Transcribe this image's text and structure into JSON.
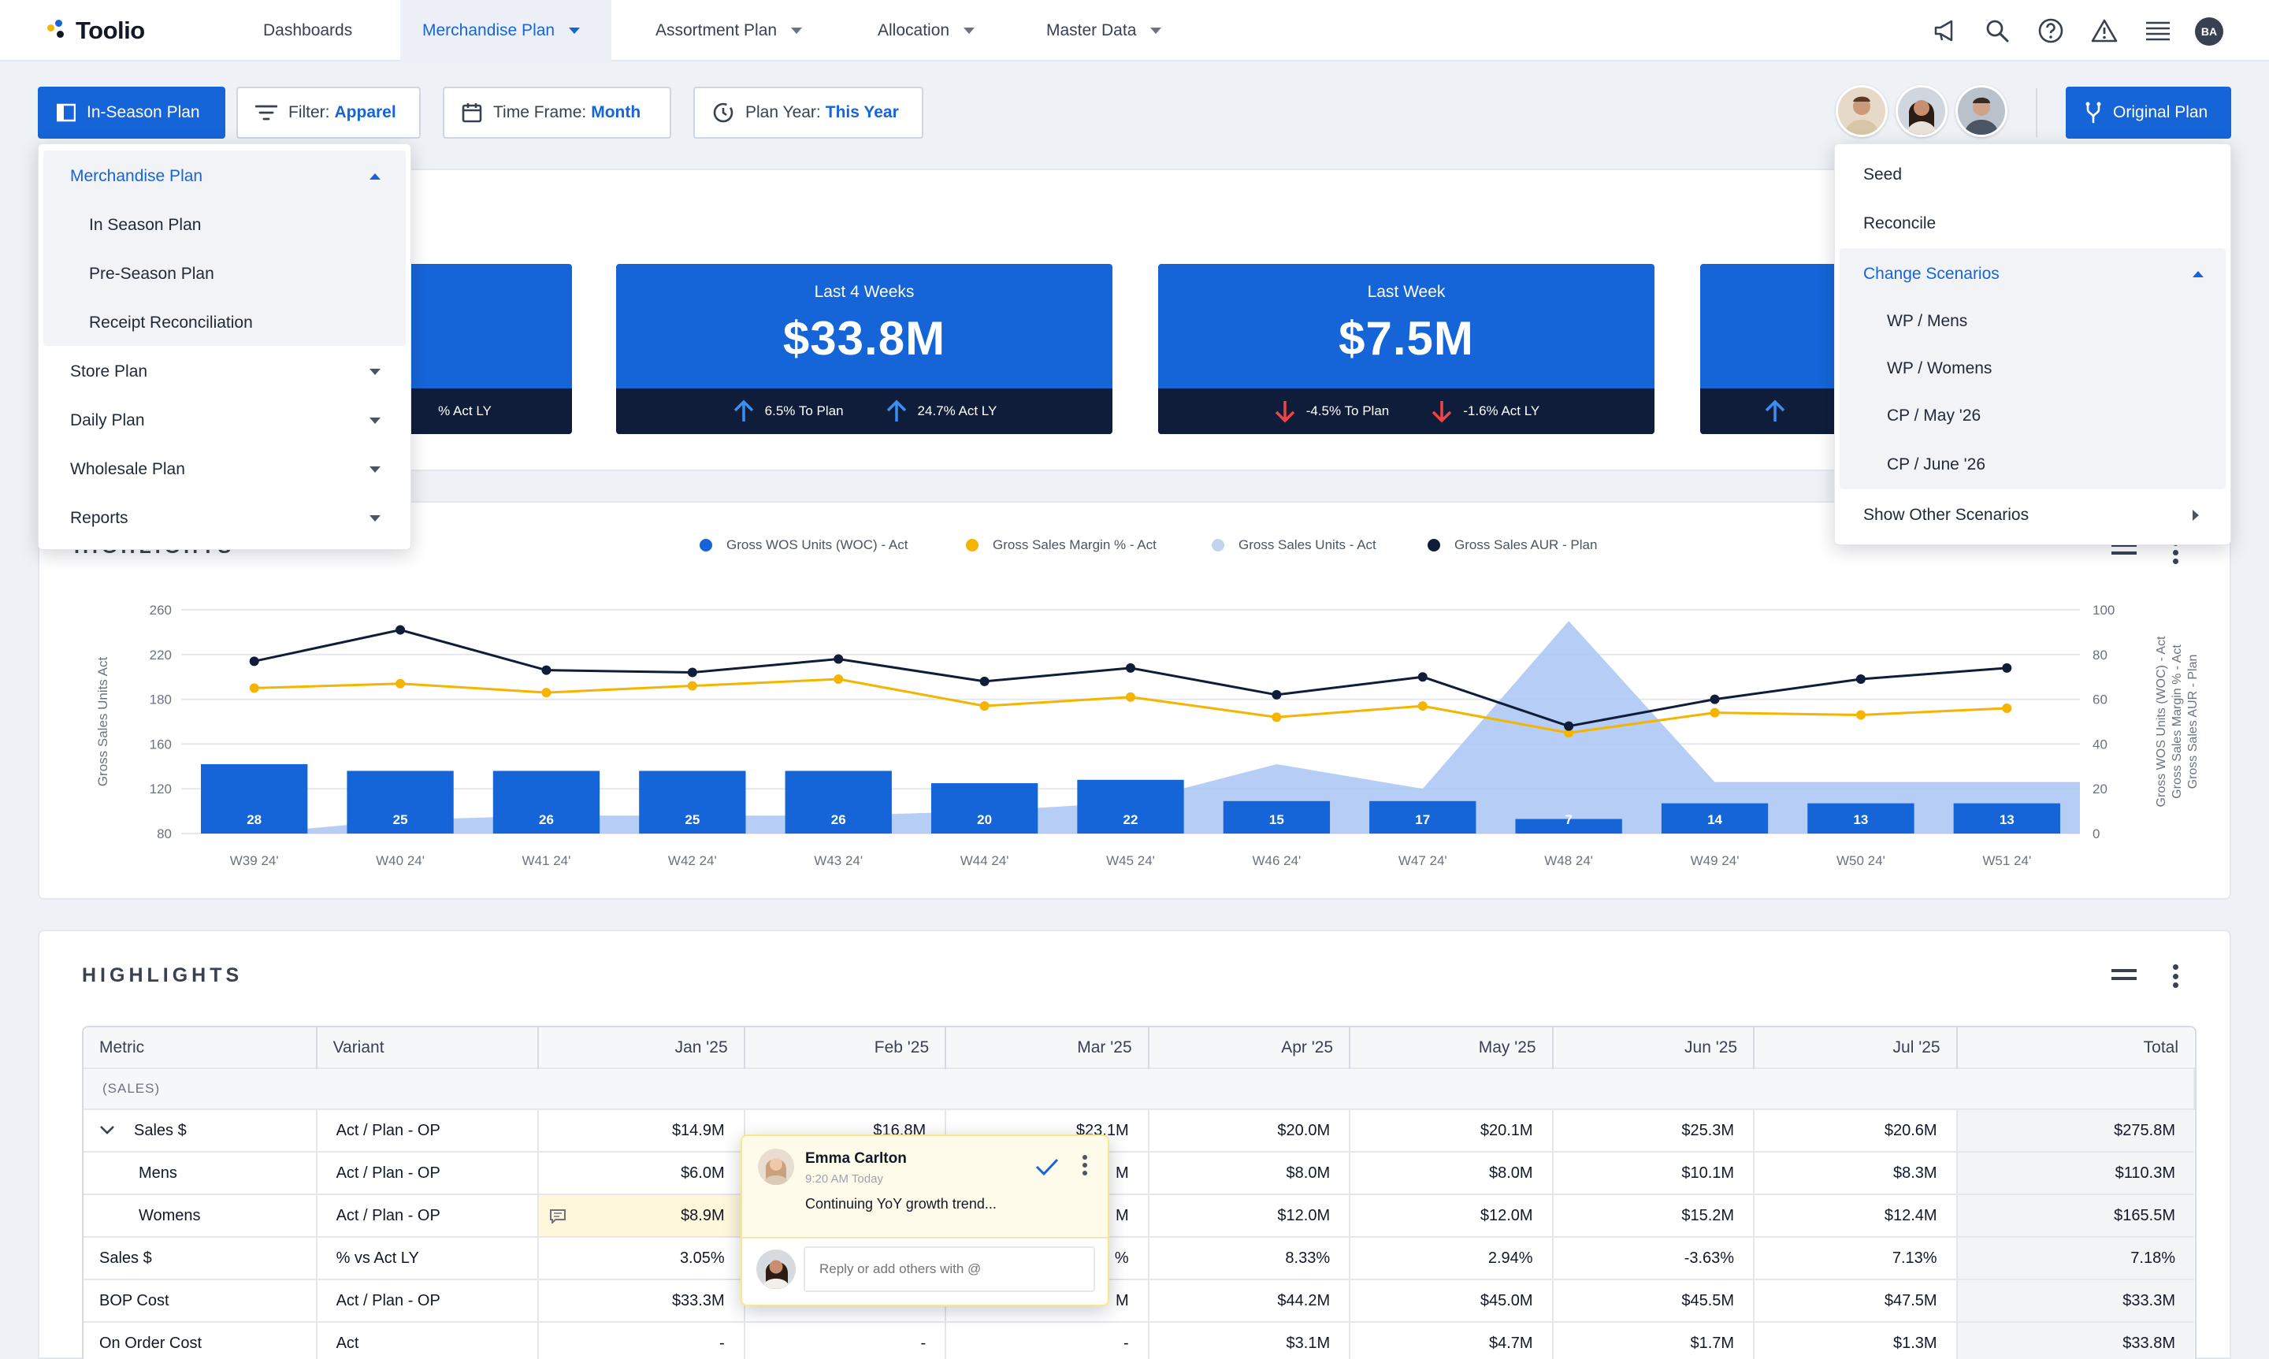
{
  "nav": {
    "logo": "Toolio",
    "items": [
      {
        "label": "Dashboards"
      },
      {
        "label": "Merchandise Plan"
      },
      {
        "label": "Assortment Plan"
      },
      {
        "label": "Allocation"
      },
      {
        "label": "Master Data"
      }
    ],
    "user_initials": "BA",
    "icons": [
      "megaphone-icon",
      "search-icon",
      "help-icon",
      "warning-icon",
      "list-icon"
    ]
  },
  "toolbar": {
    "plan_button": "In-Season Plan",
    "filter_label": "Filter:",
    "filter_value": "Apparel",
    "timeframe_label": "Time Frame:",
    "timeframe_value": "Month",
    "planyear_label": "Plan Year:",
    "planyear_value": "This Year",
    "original_plan": "Original Plan"
  },
  "plan_menu": {
    "section": "Merchandise Plan",
    "sub_items": [
      "In Season Plan",
      "Pre-Season Plan",
      "Receipt Reconciliation"
    ],
    "items": [
      "Store Plan",
      "Daily Plan",
      "Wholesale Plan",
      "Reports"
    ]
  },
  "scenario_menu": {
    "items": [
      "Seed",
      "Reconcile"
    ],
    "section": "Change Scenarios",
    "sub_items": [
      "WP / Mens",
      "WP / Womens",
      "CP / May '26",
      "CP / June '26"
    ],
    "footer": "Show Other Scenarios"
  },
  "kpis": [
    {
      "label": "",
      "value": "",
      "metrics": [
        "% Act LY"
      ]
    },
    {
      "label": "Last 4 Weeks",
      "value": "$33.8M",
      "metrics": [
        "6.5% To Plan",
        "24.7% Act LY"
      ]
    },
    {
      "label": "Last Week",
      "value": "$7.5M",
      "metrics": [
        "-4.5% To Plan",
        "-1.6% Act LY"
      ]
    }
  ],
  "chart_section": {
    "title_fragment": "HIGHLIGHTS"
  },
  "chart_data": {
    "type": "bar",
    "categories": [
      "W39 24'",
      "W40 24'",
      "W41 24'",
      "W42 24'",
      "W43 24'",
      "W44 24'",
      "W45 24'",
      "W46 24'",
      "W47 24'",
      "W48 24'",
      "W49 24'",
      "W50 24'",
      "W51 24'"
    ],
    "series": [
      {
        "name": "Gross Sales Units - Act",
        "type": "bar",
        "axis": "left",
        "values": [
          28,
          25,
          26,
          25,
          26,
          20,
          22,
          15,
          17,
          7,
          14,
          13,
          13
        ],
        "plot_values": [
          142,
          136,
          136,
          136,
          136,
          125,
          128,
          109,
          109,
          93,
          107,
          107,
          107
        ],
        "color": "#1565d8"
      },
      {
        "name": "Gross WOS Units (WOC) - Act",
        "type": "area",
        "axis": "right",
        "values": [
          0,
          6,
          8,
          8,
          8,
          10,
          14,
          31,
          20,
          95,
          23,
          23,
          23
        ],
        "color": "#a9c6f3"
      },
      {
        "name": "Gross Sales Margin % - Act",
        "type": "line",
        "axis": "right",
        "values": [
          65,
          67,
          63,
          66,
          69,
          57,
          61,
          52,
          57,
          45,
          54,
          53,
          56
        ],
        "color": "#f5b400"
      },
      {
        "name": "Gross Sales AUR - Plan",
        "type": "line",
        "axis": "right",
        "values": [
          77,
          91,
          73,
          72,
          78,
          68,
          74,
          62,
          70,
          48,
          60,
          69,
          74
        ],
        "color": "#0f1d3a"
      }
    ],
    "ylabel_left": "Gross Sales Units Act",
    "ylabel_right": [
      "Gross WOS Units (WOC) - Act",
      "Gross Sales Margin % - Act",
      "Gross Sales AUR - Plan"
    ],
    "y_ticks_left": [
      "80",
      "120",
      "160",
      "180",
      "220",
      "260"
    ],
    "y_ticks_right": [
      "0",
      "20",
      "40",
      "60",
      "80",
      "100"
    ],
    "ylim_right": [
      0,
      100
    ],
    "grid": true,
    "legend": "top-center"
  },
  "highlights": {
    "title": "HIGHLIGHTS",
    "columns": [
      "Metric",
      "Variant",
      "Jan '25",
      "Feb '25",
      "Mar '25",
      "Apr '25",
      "May '25",
      "Jun '25",
      "Jul '25",
      "Total"
    ],
    "group": "(SALES)",
    "rows": [
      {
        "metric": "Sales $",
        "variant": "Act / Plan - OP",
        "values": [
          "$14.9M",
          "$16.8M",
          "$23.1M",
          "$20.0M",
          "$20.1M",
          "$25.3M",
          "$20.6M"
        ],
        "total": "$275.8M"
      },
      {
        "metric": "Mens",
        "variant": "Act / Plan - OP",
        "values": [
          "$6.0M",
          "",
          "M",
          "$8.0M",
          "$8.0M",
          "$10.1M",
          "$8.3M"
        ],
        "total": "$110.3M"
      },
      {
        "metric": "Womens",
        "variant": "Act / Plan - OP",
        "values": [
          "$8.9M",
          "",
          "M",
          "$12.0M",
          "$12.0M",
          "$15.2M",
          "$12.4M"
        ],
        "total": "$165.5M"
      },
      {
        "metric": "Sales $",
        "variant": "% vs Act LY",
        "values": [
          "3.05%",
          "",
          "%",
          "8.33%",
          "2.94%",
          "-3.63%",
          "7.13%"
        ],
        "total": "7.18%"
      },
      {
        "metric": "BOP Cost",
        "variant": "Act / Plan - OP",
        "values": [
          "$33.3M",
          "",
          "M",
          "$44.2M",
          "$45.0M",
          "$45.5M",
          "$47.5M"
        ],
        "total": "$33.3M"
      },
      {
        "metric": "On Order Cost",
        "variant": "Act",
        "values": [
          "-",
          "-",
          "-",
          "$3.1M",
          "$4.7M",
          "$1.7M",
          "$1.3M"
        ],
        "total": "$33.8M"
      }
    ]
  },
  "comment": {
    "author": "Emma Carlton",
    "time": "9:20 AM Today",
    "text": "Continuing YoY growth trend...",
    "reply_placeholder": "Reply or add others with @"
  }
}
